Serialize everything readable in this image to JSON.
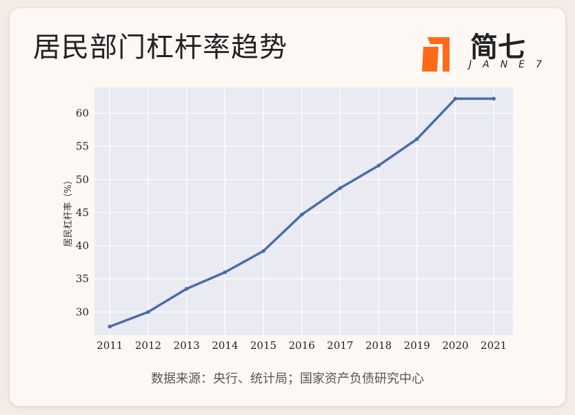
{
  "page": {
    "title": "居民部门杠杆率趋势",
    "logo_text": "简七",
    "logo_sub": "JANE7",
    "source": "数据来源：央行、统计局；国家资产负债研究中心"
  },
  "colors": {
    "plot_bg": "#e9eaf2",
    "line": "#4c6ca8",
    "logo_orange": "#ff6a1a"
  },
  "chart_data": {
    "type": "line",
    "x": [
      2011,
      2012,
      2013,
      2014,
      2015,
      2016,
      2017,
      2018,
      2019,
      2020,
      2021
    ],
    "series": [
      {
        "values": [
          27.8,
          30.0,
          33.5,
          36.0,
          39.2,
          44.7,
          48.7,
          52.1,
          56.1,
          62.2,
          62.2
        ]
      }
    ],
    "ylabel": "居民杠杆率（%）",
    "yticks": [
      30,
      35,
      40,
      45,
      50,
      55,
      60
    ],
    "ylim": [
      26.5,
      63.9
    ],
    "xlim": [
      2010.6,
      2021.5
    ],
    "grid": true,
    "legend": false
  }
}
